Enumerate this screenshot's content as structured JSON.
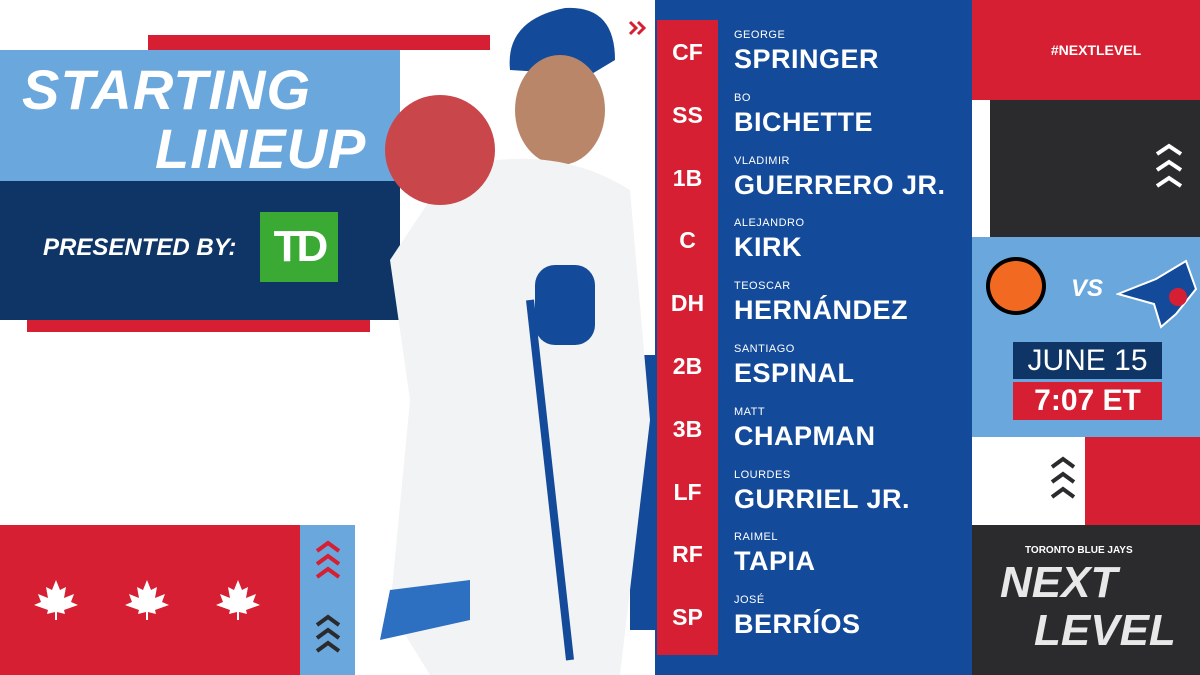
{
  "header": {
    "title_line1": "STARTING",
    "title_line2": "LINEUP",
    "presented_by": "PRESENTED BY:",
    "sponsor_logo_text": "TD"
  },
  "lineup": [
    {
      "pos": "CF",
      "first": "GEORGE",
      "last": "SPRINGER"
    },
    {
      "pos": "SS",
      "first": "BO",
      "last": "BICHETTE"
    },
    {
      "pos": "1B",
      "first": "VLADIMIR",
      "last": "GUERRERO JR."
    },
    {
      "pos": "C",
      "first": "ALEJANDRO",
      "last": "KIRK"
    },
    {
      "pos": "DH",
      "first": "TEOSCAR",
      "last": "HERNÁNDEZ"
    },
    {
      "pos": "2B",
      "first": "SANTIAGO",
      "last": "ESPINAL"
    },
    {
      "pos": "3B",
      "first": "MATT",
      "last": "CHAPMAN"
    },
    {
      "pos": "LF",
      "first": "LOURDES",
      "last": "GURRIEL JR."
    },
    {
      "pos": "RF",
      "first": "RAIMEL",
      "last": "TAPIA"
    },
    {
      "pos": "SP",
      "first": "JOSÉ",
      "last": "BERRÍOS"
    }
  ],
  "game": {
    "hashtag": "#NEXTLEVEL",
    "vs": "VS",
    "date": "JUNE 15",
    "time": "7:07 ET",
    "away_logo": "orioles-logo",
    "home_logo": "blue-jays-logo"
  },
  "brand": {
    "team": "TORONTO BLUE JAYS",
    "slogan_line1": "NEXT",
    "slogan_line2": "LEVEL"
  },
  "colors": {
    "red": "#d61f32",
    "navy": "#0f3567",
    "royal": "#134a9a",
    "light_blue": "#6aa7dc",
    "dark": "#2b2b2d",
    "td_green": "#3aaa35"
  }
}
